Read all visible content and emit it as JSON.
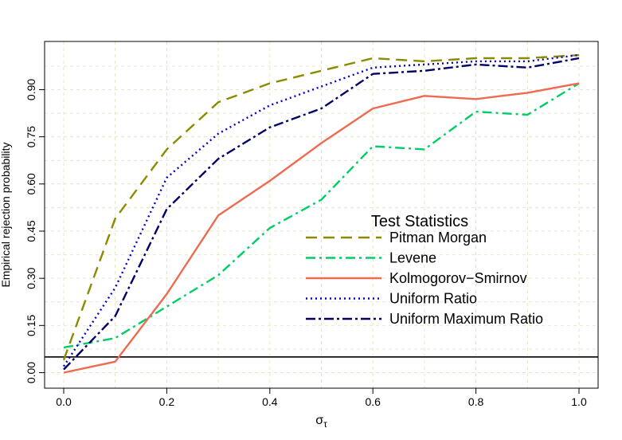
{
  "chart_data": {
    "type": "line",
    "title": "",
    "xlabel": "σ",
    "xlabel_subscript": "τ",
    "ylabel": "Empirical rejection probability",
    "xlim": [
      0.0,
      1.0
    ],
    "ylim": [
      0.0,
      1.0
    ],
    "xticks": [
      0.0,
      0.2,
      0.4,
      0.6,
      0.8,
      1.0
    ],
    "xtick_labels": [
      "0.0",
      "0.2",
      "0.4",
      "0.6",
      "0.8",
      "1.0"
    ],
    "yticks": [
      0.0,
      0.15,
      0.3,
      0.45,
      0.6,
      0.75,
      0.9
    ],
    "ytick_labels": [
      "0.00",
      "0.15",
      "0.30",
      "0.45",
      "0.60",
      "0.75",
      "0.90"
    ],
    "grid": true,
    "reference_line": 0.05,
    "legend_title": "Test Statistics",
    "legend_position": "center-right",
    "x": [
      0.0,
      0.1,
      0.2,
      0.3,
      0.4,
      0.5,
      0.6,
      0.7,
      0.8,
      0.9,
      1.0
    ],
    "series": [
      {
        "name": "Pitman Morgan",
        "color": "#8B8B00",
        "dash": "dashed",
        "values": [
          0.04,
          0.49,
          0.71,
          0.86,
          0.92,
          0.96,
          1.0,
          0.99,
          1.0,
          1.0,
          1.01
        ]
      },
      {
        "name": "Levene",
        "color": "#00CD66",
        "dash": "dotdash",
        "values": [
          0.08,
          0.11,
          0.21,
          0.31,
          0.46,
          0.55,
          0.72,
          0.71,
          0.83,
          0.82,
          0.92
        ]
      },
      {
        "name": "Kolmogorov−Smirnov",
        "color": "#EE6A50",
        "dash": "solid",
        "values": [
          0.0,
          0.035,
          0.25,
          0.5,
          0.61,
          0.73,
          0.84,
          0.88,
          0.87,
          0.89,
          0.92
        ]
      },
      {
        "name": "Uniform Ratio",
        "color": "#0000CD",
        "dash": "dotted",
        "values": [
          0.02,
          0.27,
          0.62,
          0.76,
          0.85,
          0.91,
          0.97,
          0.98,
          0.99,
          0.99,
          1.01
        ]
      },
      {
        "name": "Uniform Maximum Ratio",
        "color": "#000066",
        "dash": "longdash-dot",
        "values": [
          0.01,
          0.18,
          0.52,
          0.68,
          0.78,
          0.84,
          0.95,
          0.96,
          0.98,
          0.97,
          1.0
        ]
      }
    ]
  }
}
